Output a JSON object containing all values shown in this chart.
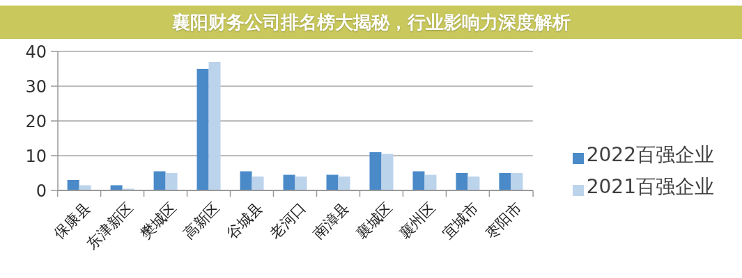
{
  "chart_data": {
    "type": "bar",
    "title": "襄阳财务公司排名榜大揭秘，行业影响力深度解析",
    "categories": [
      "保康县",
      "东津新区",
      "樊城区",
      "高新区",
      "谷城县",
      "老河口",
      "南漳县",
      "襄城区",
      "襄州区",
      "宜城市",
      "枣阳市"
    ],
    "series": [
      {
        "name": "2022百强企业",
        "color": "#4a8ac9",
        "values": [
          3,
          1.5,
          5.5,
          35,
          5.5,
          4.5,
          4.5,
          11,
          5.5,
          5,
          5
        ]
      },
      {
        "name": "2021百强企业",
        "color": "#bcd3ec",
        "values": [
          1.5,
          0.5,
          5,
          37,
          4,
          4,
          4,
          10.5,
          4.5,
          4,
          5
        ]
      }
    ],
    "ylim": [
      0,
      40
    ],
    "yticks": [
      0,
      10,
      20,
      30,
      40
    ],
    "grid": "y",
    "legend": "right"
  }
}
